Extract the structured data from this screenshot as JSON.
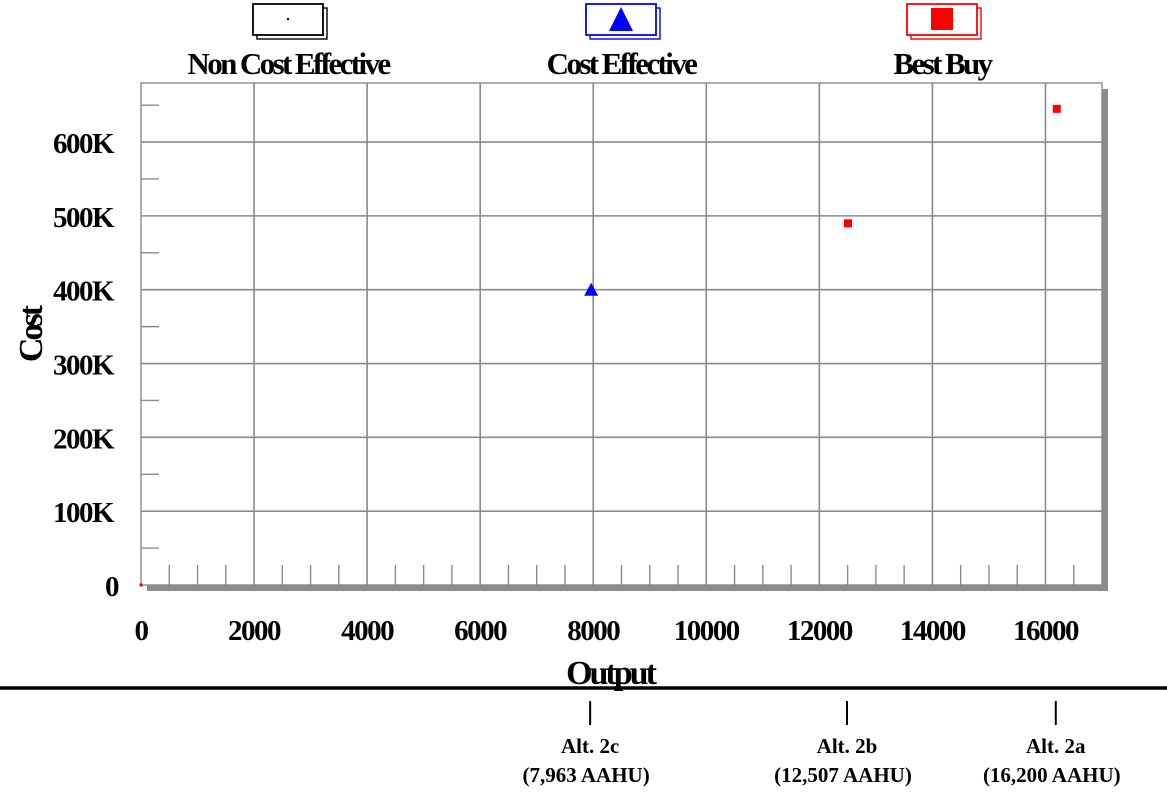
{
  "chart_data": {
    "type": "scatter",
    "xlabel": "Output",
    "ylabel": "Cost",
    "xlim": [
      0,
      17000
    ],
    "ylim": [
      0,
      680000
    ],
    "x_ticks": [
      0,
      2000,
      4000,
      6000,
      8000,
      10000,
      12000,
      14000,
      16000
    ],
    "x_tick_labels": [
      "0",
      "2000",
      "4000",
      "6000",
      "8000",
      "10000",
      "12000",
      "14000",
      "16000"
    ],
    "y_ticks": [
      0,
      100000,
      200000,
      300000,
      400000,
      500000,
      600000
    ],
    "y_tick_labels": [
      "0",
      "100K",
      "200K",
      "300K",
      "400K",
      "500K",
      "600K"
    ],
    "grid": true,
    "legend_placement": "top",
    "series": [
      {
        "name": "Non Cost Effective",
        "marker": "dot",
        "color": "#000000",
        "points": []
      },
      {
        "name": "Cost Effective",
        "marker": "triangle",
        "color": "#0000ff",
        "points": [
          {
            "x": 7963,
            "y": 400000
          }
        ]
      },
      {
        "name": "Best Buy",
        "marker": "square",
        "color": "#ff0000",
        "points": [
          {
            "x": 0,
            "y": 0
          },
          {
            "x": 12507,
            "y": 490000
          },
          {
            "x": 16200,
            "y": 645000
          }
        ]
      }
    ],
    "annotations": [
      {
        "x": 7963,
        "line1": "Alt. 2c",
        "line2": "(7,963 AAHU)"
      },
      {
        "x": 12507,
        "line1": "Alt. 2b",
        "line2": "(12,507 AAHU)"
      },
      {
        "x": 16200,
        "line1": "Alt. 2a",
        "line2": "(16,200 AAHU)"
      }
    ]
  }
}
